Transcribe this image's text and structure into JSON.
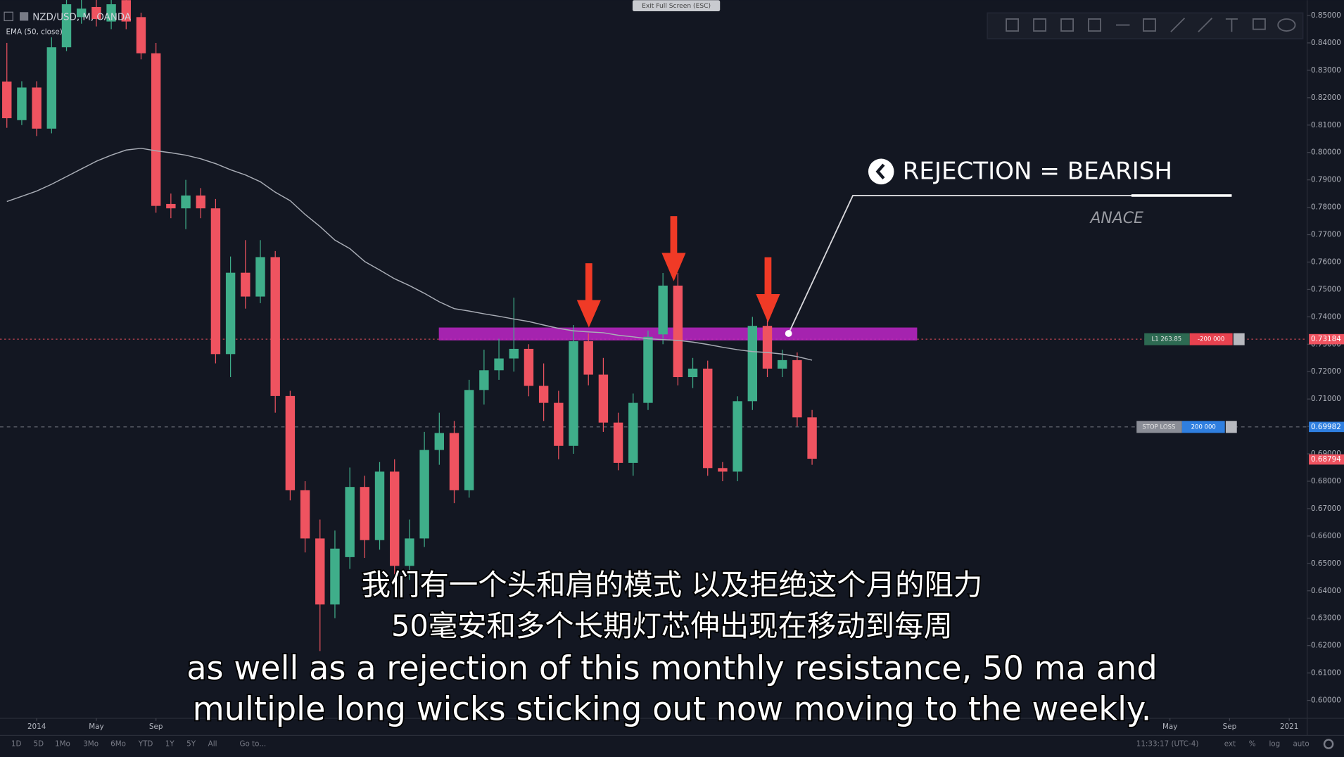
{
  "window": {
    "exit_fullscreen": "Exit Full Screen (ESC)"
  },
  "chart_data": {
    "type": "candlestick",
    "symbol_label": "NZD/USD, M, OANDA",
    "open": [
      0.8259,
      0.8118,
      0.8237,
      0.8087,
      0.8384,
      0.8494,
      0.8531,
      0.8478,
      0.8556,
      0.8494,
      0.8362,
      0.7812,
      0.7796,
      0.7843,
      0.7796,
      0.7264,
      0.7561,
      0.7474,
      0.7618,
      0.7111,
      0.6767,
      0.6591,
      0.635,
      0.6523,
      0.6779,
      0.6585,
      0.6835,
      0.6491,
      0.6591,
      0.6914,
      0.6976,
      0.6767,
      0.7133,
      0.7205,
      0.7248,
      0.7283,
      0.7148,
      0.7086,
      0.6929,
      0.7311,
      0.7189,
      0.7014,
      0.6867,
      0.7086,
      0.7336,
      0.7514,
      0.718,
      0.7211,
      0.6848,
      0.6835,
      0.7092,
      0.7367,
      0.7211,
      0.7242,
      0.7033
    ],
    "high": [
      0.84,
      0.826,
      0.826,
      0.842,
      0.858,
      0.856,
      0.857,
      0.858,
      0.86,
      0.851,
      0.84,
      0.785,
      0.79,
      0.787,
      0.783,
      0.762,
      0.768,
      0.768,
      0.764,
      0.713,
      0.68,
      0.666,
      0.662,
      0.685,
      0.682,
      0.687,
      0.688,
      0.666,
      0.698,
      0.705,
      0.702,
      0.717,
      0.728,
      0.732,
      0.747,
      0.73,
      0.723,
      0.713,
      0.737,
      0.734,
      0.725,
      0.705,
      0.712,
      0.735,
      0.756,
      0.756,
      0.725,
      0.724,
      0.687,
      0.711,
      0.74,
      0.74,
      0.728,
      0.727,
      0.706
    ],
    "low": [
      0.809,
      0.81,
      0.806,
      0.807,
      0.837,
      0.847,
      0.846,
      0.845,
      0.845,
      0.834,
      0.778,
      0.776,
      0.772,
      0.776,
      0.723,
      0.718,
      0.743,
      0.745,
      0.705,
      0.673,
      0.654,
      0.618,
      0.63,
      0.648,
      0.652,
      0.655,
      0.646,
      0.644,
      0.656,
      0.686,
      0.672,
      0.674,
      0.708,
      0.717,
      0.72,
      0.711,
      0.702,
      0.688,
      0.69,
      0.715,
      0.698,
      0.684,
      0.682,
      0.706,
      0.73,
      0.715,
      0.714,
      0.682,
      0.68,
      0.68,
      0.706,
      0.718,
      0.718,
      0.7,
      0.686
    ],
    "close": [
      0.8125,
      0.8237,
      0.8087,
      0.8384,
      0.8541,
      0.8525,
      0.8487,
      0.8541,
      0.8478,
      0.8362,
      0.7805,
      0.7796,
      0.7843,
      0.7796,
      0.7264,
      0.7561,
      0.7474,
      0.7618,
      0.7111,
      0.6767,
      0.6591,
      0.635,
      0.6554,
      0.6779,
      0.6585,
      0.6835,
      0.6491,
      0.6591,
      0.6914,
      0.6976,
      0.6767,
      0.7133,
      0.7205,
      0.7248,
      0.7283,
      0.7148,
      0.7086,
      0.6929,
      0.7311,
      0.7189,
      0.7014,
      0.6867,
      0.7086,
      0.7327,
      0.7514,
      0.718,
      0.7211,
      0.6848,
      0.6835,
      0.7092,
      0.7367,
      0.7211,
      0.7242,
      0.7033,
      0.6882
    ],
    "up_color": "#3fae8a",
    "down_color": "#ef5360",
    "ema": {
      "name": "EMA (50, close)",
      "color": "#a9adb6",
      "values": [
        0.7821,
        0.784,
        0.7859,
        0.7884,
        0.7912,
        0.794,
        0.7968,
        0.799,
        0.8009,
        0.8015,
        0.8006,
        0.7999,
        0.799,
        0.7977,
        0.7959,
        0.7937,
        0.7918,
        0.7893,
        0.7855,
        0.7824,
        0.7774,
        0.773,
        0.768,
        0.7649,
        0.7602,
        0.7571,
        0.7539,
        0.7514,
        0.7486,
        0.7455,
        0.743,
        0.7421,
        0.7411,
        0.7402,
        0.7392,
        0.7383,
        0.737,
        0.7358,
        0.7349,
        0.7345,
        0.7342,
        0.7333,
        0.7327,
        0.732,
        0.7317,
        0.7314,
        0.7308,
        0.7299,
        0.7289,
        0.728,
        0.7273,
        0.727,
        0.7264,
        0.7255,
        0.7242
      ]
    },
    "resistance_zone": {
      "values": [
        0.7314,
        0.7361
      ],
      "color": "#c026c8"
    },
    "xlim": [
      -0.46,
      87.2
    ],
    "xticks": [
      {
        "value": 2,
        "label": "2014"
      },
      {
        "value": 6,
        "label": "May"
      },
      {
        "value": 10,
        "label": "Sep"
      },
      {
        "value": 78,
        "label": "May"
      },
      {
        "value": 82,
        "label": "Sep"
      },
      {
        "value": 86,
        "label": "2021"
      }
    ],
    "ylim": [
      0.5944,
      0.8556
    ],
    "yticks": [
      {
        "value": 0.6,
        "label": "0.60000"
      },
      {
        "value": 0.61,
        "label": "0.61000"
      },
      {
        "value": 0.62,
        "label": "0.62000"
      },
      {
        "value": 0.63,
        "label": "0.63000"
      },
      {
        "value": 0.64,
        "label": "0.64000"
      },
      {
        "value": 0.65,
        "label": "0.65000"
      },
      {
        "value": 0.66,
        "label": "0.66000"
      },
      {
        "value": 0.67,
        "label": "0.67000"
      },
      {
        "value": 0.68,
        "label": "0.68000"
      },
      {
        "value": 0.69,
        "label": "0.69000"
      },
      {
        "value": 0.7,
        "label": "0.70000"
      },
      {
        "value": 0.71,
        "label": "0.71000"
      },
      {
        "value": 0.72,
        "label": "0.72000"
      },
      {
        "value": 0.73,
        "label": "0.73000"
      },
      {
        "value": 0.74,
        "label": "0.74000"
      },
      {
        "value": 0.75,
        "label": "0.75000"
      },
      {
        "value": 0.76,
        "label": "0.76000"
      },
      {
        "value": 0.77,
        "label": "0.77000"
      },
      {
        "value": 0.78,
        "label": "0.78000"
      },
      {
        "value": 0.79,
        "label": "0.79000"
      },
      {
        "value": 0.8,
        "label": "0.80000"
      },
      {
        "value": 0.81,
        "label": "0.81000"
      },
      {
        "value": 0.82,
        "label": "0.82000"
      },
      {
        "value": 0.83,
        "label": "0.83000"
      },
      {
        "value": 0.84,
        "label": "0.84000"
      },
      {
        "value": 0.85,
        "label": "0.85000"
      }
    ],
    "price_labels": [
      {
        "value": 0.73184,
        "label": "0.73184",
        "color": "#ef5360"
      },
      {
        "value": 0.69982,
        "label": "0.69982",
        "color": "#2f7fe0"
      },
      {
        "value": 0.68794,
        "label": "0.68794",
        "color": "#ef5360"
      }
    ],
    "annotation": {
      "title": "REJECTION = BEARISH",
      "subtitle": "ANACE"
    }
  },
  "orders": [
    {
      "label": "L1 263.85",
      "amount": "-200 000"
    },
    {
      "label": "STOP LOSS",
      "amount": "200 000"
    }
  ],
  "bottom_bar": {
    "ranges": [
      "1D",
      "5D",
      "1Mo",
      "3Mo",
      "6Mo",
      "YTD",
      "1Y",
      "5Y",
      "All",
      "Go to..."
    ],
    "clock": "11:33:17 (UTC-4)",
    "options": [
      "ext",
      "%",
      "log",
      "auto"
    ]
  },
  "subtitles": [
    "我们有一个头和肩的模式 以及拒绝这个月的阻力",
    "50毫安和多个长期灯芯伸出现在移动到每周",
    "as well as a rejection of this monthly resistance, 50 ma and",
    "multiple long wicks sticking out now moving to the weekly."
  ]
}
